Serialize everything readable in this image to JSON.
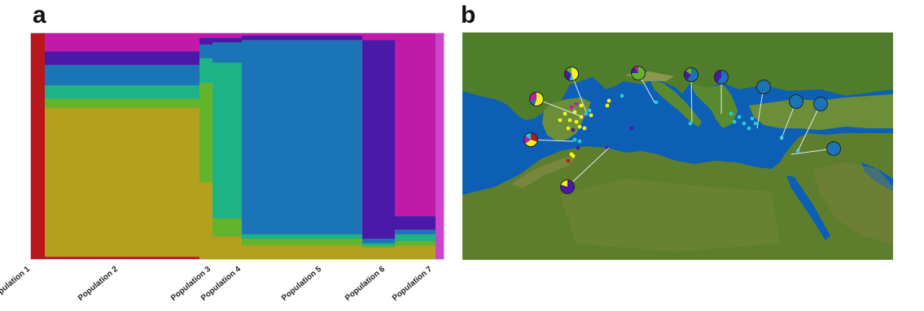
{
  "panels": {
    "a": "a",
    "b": "b"
  },
  "colors": {
    "red": "#b8171b",
    "ochre": "#b3a01c",
    "green": "#62b52a",
    "teal": "#1eb384",
    "blue": "#1b74b5",
    "purple": "#4b19a7",
    "magenta": "#c11aa8",
    "yellow": "#f5f21d",
    "cyan": "#29c8d4",
    "sea": "#0d5fb5"
  },
  "populations": [
    "Population 1",
    "Population 2",
    "Population 3",
    "Population 4",
    "Population 5",
    "Population 6",
    "Population 7"
  ],
  "chart_data": [
    {
      "type": "bar",
      "stacked": true,
      "title": "",
      "xlabel": "",
      "ylabel": "",
      "ylim": [
        0,
        1
      ],
      "categories": [
        "Population 1",
        "Population 2",
        "Population 3",
        "Population 4",
        "Population 5",
        "Population 6",
        "Population 7"
      ],
      "series": [
        {
          "color": "red",
          "values": [
            1.0,
            0.01,
            0.0,
            0.0,
            0.0,
            0.0,
            0.0
          ]
        },
        {
          "color": "ochre",
          "values": [
            0.0,
            0.66,
            0.34,
            0.1,
            0.06,
            0.05,
            0.06
          ]
        },
        {
          "color": "green",
          "values": [
            0.0,
            0.04,
            0.44,
            0.08,
            0.03,
            0.01,
            0.02
          ]
        },
        {
          "color": "teal",
          "values": [
            0.0,
            0.06,
            0.11,
            0.69,
            0.02,
            0.01,
            0.03
          ]
        },
        {
          "color": "blue",
          "values": [
            0.0,
            0.09,
            0.06,
            0.09,
            0.86,
            0.02,
            0.02
          ]
        },
        {
          "color": "purple",
          "values": [
            0.0,
            0.06,
            0.03,
            0.02,
            0.02,
            0.88,
            0.06
          ]
        },
        {
          "color": "magenta",
          "values": [
            0.0,
            0.08,
            0.02,
            0.02,
            0.01,
            0.03,
            0.81
          ]
        }
      ]
    },
    {
      "type": "pie",
      "title": "",
      "pies": [
        {
          "slices": [
            {
              "color": "yellow",
              "value": 0.55
            },
            {
              "color": "blue",
              "value": 0.15
            },
            {
              "color": "magenta",
              "value": 0.3
            }
          ]
        },
        {
          "slices": [
            {
              "color": "yellow",
              "value": 0.45
            },
            {
              "color": "cyan",
              "value": 0.1
            },
            {
              "color": "purple",
              "value": 0.3
            },
            {
              "color": "green",
              "value": 0.15
            }
          ]
        },
        {
          "slices": [
            {
              "color": "green",
              "value": 0.75
            },
            {
              "color": "purple",
              "value": 0.15
            },
            {
              "color": "magenta",
              "value": 0.1
            }
          ]
        },
        {
          "slices": [
            {
              "color": "blue",
              "value": 0.6
            },
            {
              "color": "purple",
              "value": 0.25
            },
            {
              "color": "green",
              "value": 0.15
            }
          ]
        },
        {
          "slices": [
            {
              "color": "blue",
              "value": 0.6
            },
            {
              "color": "purple",
              "value": 0.4
            }
          ]
        },
        {
          "slices": [
            {
              "color": "blue",
              "value": 1.0
            }
          ]
        },
        {
          "slices": [
            {
              "color": "blue",
              "value": 1.0
            }
          ]
        },
        {
          "slices": [
            {
              "color": "blue",
              "value": 1.0
            }
          ]
        },
        {
          "slices": [
            {
              "color": "blue",
              "value": 1.0
            }
          ]
        },
        {
          "slices": [
            {
              "color": "red",
              "value": 0.3
            },
            {
              "color": "yellow",
              "value": 0.35
            },
            {
              "color": "magenta",
              "value": 0.2
            },
            {
              "color": "cyan",
              "value": 0.15
            }
          ]
        },
        {
          "slices": [
            {
              "color": "purple",
              "value": 0.8
            },
            {
              "color": "yellow",
              "value": 0.2
            }
          ]
        }
      ]
    }
  ]
}
